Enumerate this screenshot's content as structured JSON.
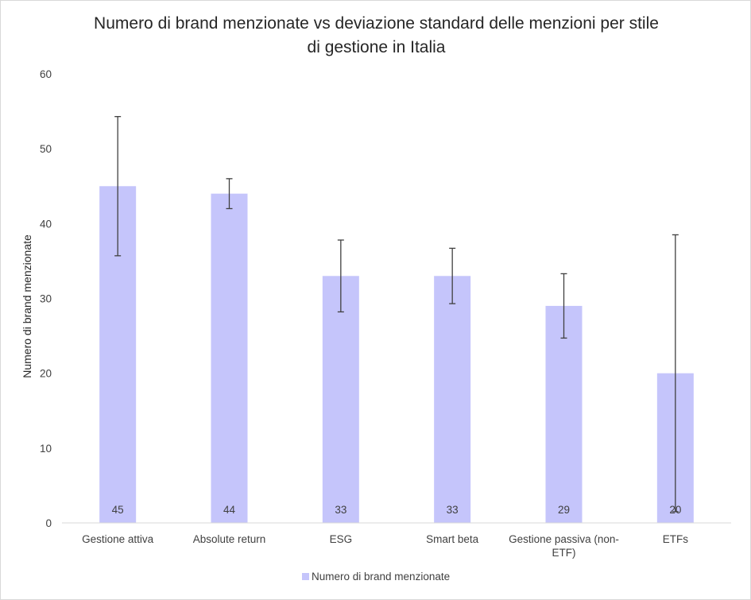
{
  "chart_data": {
    "type": "bar",
    "title": "Numero di brand menzionate vs deviazione standard delle menzioni per stile di gestione in Italia",
    "title_lines": [
      "Numero di brand menzionate vs deviazione standard delle menzioni per stile",
      "di gestione in Italia"
    ],
    "ylabel": "Numero di brand menzionate",
    "xlabel": "",
    "ylim": [
      0,
      60
    ],
    "yticks": [
      0,
      10,
      20,
      30,
      40,
      50,
      60
    ],
    "categories": [
      "Gestione attiva",
      "Absolute return",
      "ESG",
      "Smart beta",
      "Gestione passiva (non-ETF)",
      "ETFs"
    ],
    "category_lines": [
      [
        "Gestione attiva"
      ],
      [
        "Absolute return"
      ],
      [
        "ESG"
      ],
      [
        "Smart beta"
      ],
      [
        "Gestione passiva (non-",
        "ETF)"
      ],
      [
        "ETFs"
      ]
    ],
    "series": [
      {
        "name": "Numero di brand menzionate",
        "values": [
          45,
          44,
          33,
          33,
          29,
          20
        ],
        "error": [
          9.3,
          2.0,
          4.8,
          3.7,
          4.3,
          18.5
        ]
      }
    ],
    "bar_color": "#c5c5fb",
    "error_bar_color": "#404040",
    "legend_position": "bottom",
    "grid": false
  }
}
